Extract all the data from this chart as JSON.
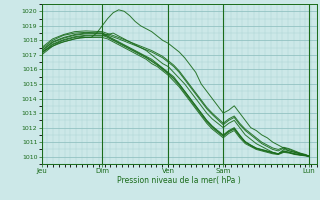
{
  "xlabel": "Pression niveau de la mer( hPa )",
  "ylim": [
    1009.5,
    1020.5
  ],
  "yticks": [
    1010,
    1011,
    1012,
    1013,
    1014,
    1015,
    1016,
    1017,
    1018,
    1019,
    1020
  ],
  "day_labels": [
    "Jeu",
    "Dim",
    "Ven",
    "Sam",
    "Lun"
  ],
  "day_positions": [
    0.0,
    0.22,
    0.46,
    0.66,
    0.97
  ],
  "bg_color": "#cce8e8",
  "grid_minor_color": "#aad4d4",
  "grid_major_color": "#88bbbb",
  "line_color": "#1a6b1a",
  "curves": [
    {
      "x": [
        0.0,
        0.02,
        0.04,
        0.06,
        0.08,
        0.1,
        0.12,
        0.14,
        0.16,
        0.18,
        0.2,
        0.22,
        0.24,
        0.26,
        0.28,
        0.3,
        0.32,
        0.34,
        0.36,
        0.38,
        0.4,
        0.42,
        0.44,
        0.46,
        0.48,
        0.5,
        0.52,
        0.54,
        0.56,
        0.58,
        0.6,
        0.62,
        0.64,
        0.66,
        0.68,
        0.7,
        0.72,
        0.74,
        0.76,
        0.78,
        0.8,
        0.82,
        0.84,
        0.86,
        0.88,
        0.9,
        0.92,
        0.94,
        0.96,
        0.97
      ],
      "y": [
        1017.2,
        1017.4,
        1017.6,
        1017.8,
        1017.9,
        1018.0,
        1018.1,
        1018.2,
        1018.2,
        1018.2,
        1018.5,
        1019.0,
        1019.5,
        1019.9,
        1020.1,
        1020.0,
        1019.7,
        1019.3,
        1019.0,
        1018.8,
        1018.6,
        1018.3,
        1018.0,
        1017.8,
        1017.5,
        1017.2,
        1016.8,
        1016.3,
        1015.8,
        1015.0,
        1014.5,
        1014.0,
        1013.5,
        1013.0,
        1013.2,
        1013.5,
        1013.0,
        1012.5,
        1012.0,
        1011.8,
        1011.5,
        1011.3,
        1011.0,
        1010.8,
        1010.6,
        1010.4,
        1010.3,
        1010.2,
        1010.1,
        1010.05
      ]
    },
    {
      "x": [
        0.0,
        0.04,
        0.08,
        0.12,
        0.16,
        0.2,
        0.22,
        0.24,
        0.26,
        0.28,
        0.3,
        0.32,
        0.34,
        0.36,
        0.38,
        0.4,
        0.42,
        0.44,
        0.46,
        0.48,
        0.5,
        0.52,
        0.54,
        0.56,
        0.58,
        0.6,
        0.62,
        0.64,
        0.66,
        0.68,
        0.7,
        0.72,
        0.74,
        0.76,
        0.78,
        0.8,
        0.82,
        0.84,
        0.86,
        0.88,
        0.9,
        0.92,
        0.94,
        0.96,
        0.97
      ],
      "y": [
        1017.1,
        1017.7,
        1018.0,
        1018.2,
        1018.3,
        1018.3,
        1018.3,
        1018.4,
        1018.5,
        1018.3,
        1018.1,
        1017.9,
        1017.7,
        1017.5,
        1017.3,
        1017.0,
        1016.7,
        1016.4,
        1016.2,
        1015.8,
        1015.4,
        1015.0,
        1014.5,
        1014.0,
        1013.5,
        1013.0,
        1012.6,
        1012.3,
        1012.0,
        1012.3,
        1012.5,
        1012.0,
        1011.5,
        1011.2,
        1010.9,
        1010.7,
        1010.5,
        1010.3,
        1010.2,
        1010.5,
        1010.4,
        1010.3,
        1010.2,
        1010.1,
        1010.05
      ]
    },
    {
      "x": [
        0.0,
        0.04,
        0.08,
        0.12,
        0.16,
        0.2,
        0.22,
        0.24,
        0.26,
        0.28,
        0.3,
        0.32,
        0.34,
        0.36,
        0.38,
        0.4,
        0.42,
        0.44,
        0.46,
        0.48,
        0.5,
        0.52,
        0.54,
        0.56,
        0.58,
        0.6,
        0.62,
        0.64,
        0.66,
        0.68,
        0.7,
        0.72,
        0.74,
        0.76,
        0.78,
        0.8,
        0.82,
        0.84,
        0.86,
        0.88,
        0.9,
        0.92,
        0.94,
        0.96,
        0.97
      ],
      "y": [
        1017.3,
        1017.9,
        1018.2,
        1018.4,
        1018.5,
        1018.5,
        1018.5,
        1018.3,
        1018.1,
        1017.9,
        1017.7,
        1017.5,
        1017.3,
        1017.1,
        1016.9,
        1016.7,
        1016.4,
        1016.1,
        1015.8,
        1015.5,
        1015.0,
        1014.5,
        1014.0,
        1013.5,
        1013.0,
        1012.5,
        1012.1,
        1011.8,
        1011.5,
        1011.8,
        1012.0,
        1011.5,
        1011.0,
        1010.8,
        1010.6,
        1010.5,
        1010.4,
        1010.3,
        1010.2,
        1010.4,
        1010.3,
        1010.2,
        1010.15,
        1010.1,
        1010.05
      ]
    },
    {
      "x": [
        0.0,
        0.04,
        0.08,
        0.12,
        0.16,
        0.2,
        0.22,
        0.24,
        0.26,
        0.28,
        0.3,
        0.32,
        0.34,
        0.36,
        0.38,
        0.4,
        0.42,
        0.44,
        0.46,
        0.48,
        0.5,
        0.52,
        0.54,
        0.56,
        0.58,
        0.6,
        0.62,
        0.64,
        0.66,
        0.68,
        0.7,
        0.72,
        0.74,
        0.76,
        0.78,
        0.8,
        0.82,
        0.84,
        0.86,
        0.88,
        0.9,
        0.92,
        0.94,
        0.96,
        0.97
      ],
      "y": [
        1017.0,
        1017.6,
        1017.9,
        1018.1,
        1018.2,
        1018.2,
        1018.2,
        1018.1,
        1017.9,
        1017.7,
        1017.5,
        1017.3,
        1017.1,
        1016.9,
        1016.7,
        1016.4,
        1016.2,
        1015.9,
        1015.6,
        1015.2,
        1014.8,
        1014.3,
        1013.8,
        1013.3,
        1012.8,
        1012.3,
        1011.9,
        1011.6,
        1011.3,
        1011.6,
        1011.8,
        1011.3,
        1010.9,
        1010.7,
        1010.5,
        1010.4,
        1010.3,
        1010.2,
        1010.15,
        1010.3,
        1010.25,
        1010.15,
        1010.1,
        1010.05,
        1010.0
      ]
    },
    {
      "x": [
        0.0,
        0.04,
        0.08,
        0.12,
        0.16,
        0.2,
        0.22,
        0.24,
        0.26,
        0.28,
        0.3,
        0.32,
        0.34,
        0.36,
        0.38,
        0.4,
        0.42,
        0.44,
        0.46,
        0.48,
        0.5,
        0.52,
        0.54,
        0.56,
        0.58,
        0.6,
        0.62,
        0.64,
        0.66,
        0.68,
        0.7,
        0.72,
        0.74,
        0.76,
        0.78,
        0.8,
        0.82,
        0.84,
        0.86,
        0.88,
        0.9,
        0.92,
        0.94,
        0.96,
        0.97
      ],
      "y": [
        1017.15,
        1017.75,
        1018.05,
        1018.25,
        1018.35,
        1018.35,
        1018.35,
        1018.2,
        1018.0,
        1017.8,
        1017.6,
        1017.4,
        1017.2,
        1017.0,
        1016.8,
        1016.55,
        1016.3,
        1016.0,
        1015.7,
        1015.35,
        1014.9,
        1014.4,
        1013.9,
        1013.4,
        1012.9,
        1012.4,
        1012.0,
        1011.7,
        1011.4,
        1011.7,
        1011.9,
        1011.4,
        1011.0,
        1010.75,
        1010.55,
        1010.45,
        1010.35,
        1010.25,
        1010.18,
        1010.35,
        1010.28,
        1010.18,
        1010.12,
        1010.08,
        1010.03
      ]
    },
    {
      "x": [
        0.0,
        0.04,
        0.08,
        0.12,
        0.16,
        0.2,
        0.22,
        0.24,
        0.26,
        0.28,
        0.3,
        0.32,
        0.34,
        0.36,
        0.38,
        0.4,
        0.42,
        0.44,
        0.46,
        0.48,
        0.5,
        0.52,
        0.54,
        0.56,
        0.58,
        0.6,
        0.62,
        0.64,
        0.66,
        0.68,
        0.7,
        0.72,
        0.74,
        0.76,
        0.78,
        0.8,
        0.82,
        0.84,
        0.86,
        0.88,
        0.9,
        0.92,
        0.94,
        0.96,
        0.97
      ],
      "y": [
        1017.25,
        1017.85,
        1018.15,
        1018.35,
        1018.45,
        1018.45,
        1018.45,
        1018.25,
        1018.05,
        1017.85,
        1017.65,
        1017.45,
        1017.25,
        1017.05,
        1016.85,
        1016.6,
        1016.35,
        1016.05,
        1015.75,
        1015.4,
        1015.0,
        1014.5,
        1014.0,
        1013.5,
        1013.0,
        1012.5,
        1012.1,
        1011.75,
        1011.45,
        1011.75,
        1011.95,
        1011.45,
        1011.05,
        1010.8,
        1010.58,
        1010.48,
        1010.38,
        1010.28,
        1010.2,
        1010.38,
        1010.3,
        1010.2,
        1010.13,
        1010.08,
        1010.03
      ]
    },
    {
      "x": [
        0.0,
        0.04,
        0.08,
        0.12,
        0.16,
        0.22,
        0.25,
        0.28,
        0.32,
        0.36,
        0.4,
        0.44,
        0.46,
        0.48,
        0.5,
        0.52,
        0.54,
        0.56,
        0.58,
        0.6,
        0.62,
        0.64,
        0.66,
        0.68,
        0.7,
        0.72,
        0.74,
        0.76,
        0.78,
        0.8,
        0.82,
        0.84,
        0.86,
        0.88,
        0.9,
        0.92,
        0.94,
        0.96,
        0.97
      ],
      "y": [
        1017.4,
        1018.0,
        1018.35,
        1018.5,
        1018.55,
        1018.5,
        1018.3,
        1018.1,
        1017.8,
        1017.5,
        1017.2,
        1016.8,
        1016.5,
        1016.2,
        1015.8,
        1015.3,
        1014.8,
        1014.3,
        1013.8,
        1013.3,
        1012.9,
        1012.55,
        1012.2,
        1012.5,
        1012.7,
        1012.2,
        1011.8,
        1011.5,
        1011.2,
        1010.9,
        1010.7,
        1010.5,
        1010.4,
        1010.6,
        1010.5,
        1010.35,
        1010.22,
        1010.12,
        1010.05
      ]
    },
    {
      "x": [
        0.0,
        0.04,
        0.08,
        0.12,
        0.16,
        0.22,
        0.25,
        0.28,
        0.32,
        0.36,
        0.4,
        0.44,
        0.46,
        0.48,
        0.5,
        0.52,
        0.54,
        0.56,
        0.58,
        0.6,
        0.62,
        0.64,
        0.66,
        0.68,
        0.7,
        0.72,
        0.74,
        0.76,
        0.78,
        0.8,
        0.82,
        0.84,
        0.86,
        0.88,
        0.9,
        0.92,
        0.94,
        0.96,
        0.97
      ],
      "y": [
        1017.5,
        1018.1,
        1018.4,
        1018.6,
        1018.65,
        1018.6,
        1018.4,
        1018.2,
        1017.9,
        1017.6,
        1017.3,
        1016.9,
        1016.6,
        1016.3,
        1015.9,
        1015.4,
        1014.9,
        1014.4,
        1013.9,
        1013.4,
        1013.0,
        1012.65,
        1012.3,
        1012.6,
        1012.8,
        1012.3,
        1011.9,
        1011.6,
        1011.3,
        1011.0,
        1010.8,
        1010.6,
        1010.5,
        1010.65,
        1010.55,
        1010.4,
        1010.25,
        1010.15,
        1010.06
      ]
    }
  ]
}
